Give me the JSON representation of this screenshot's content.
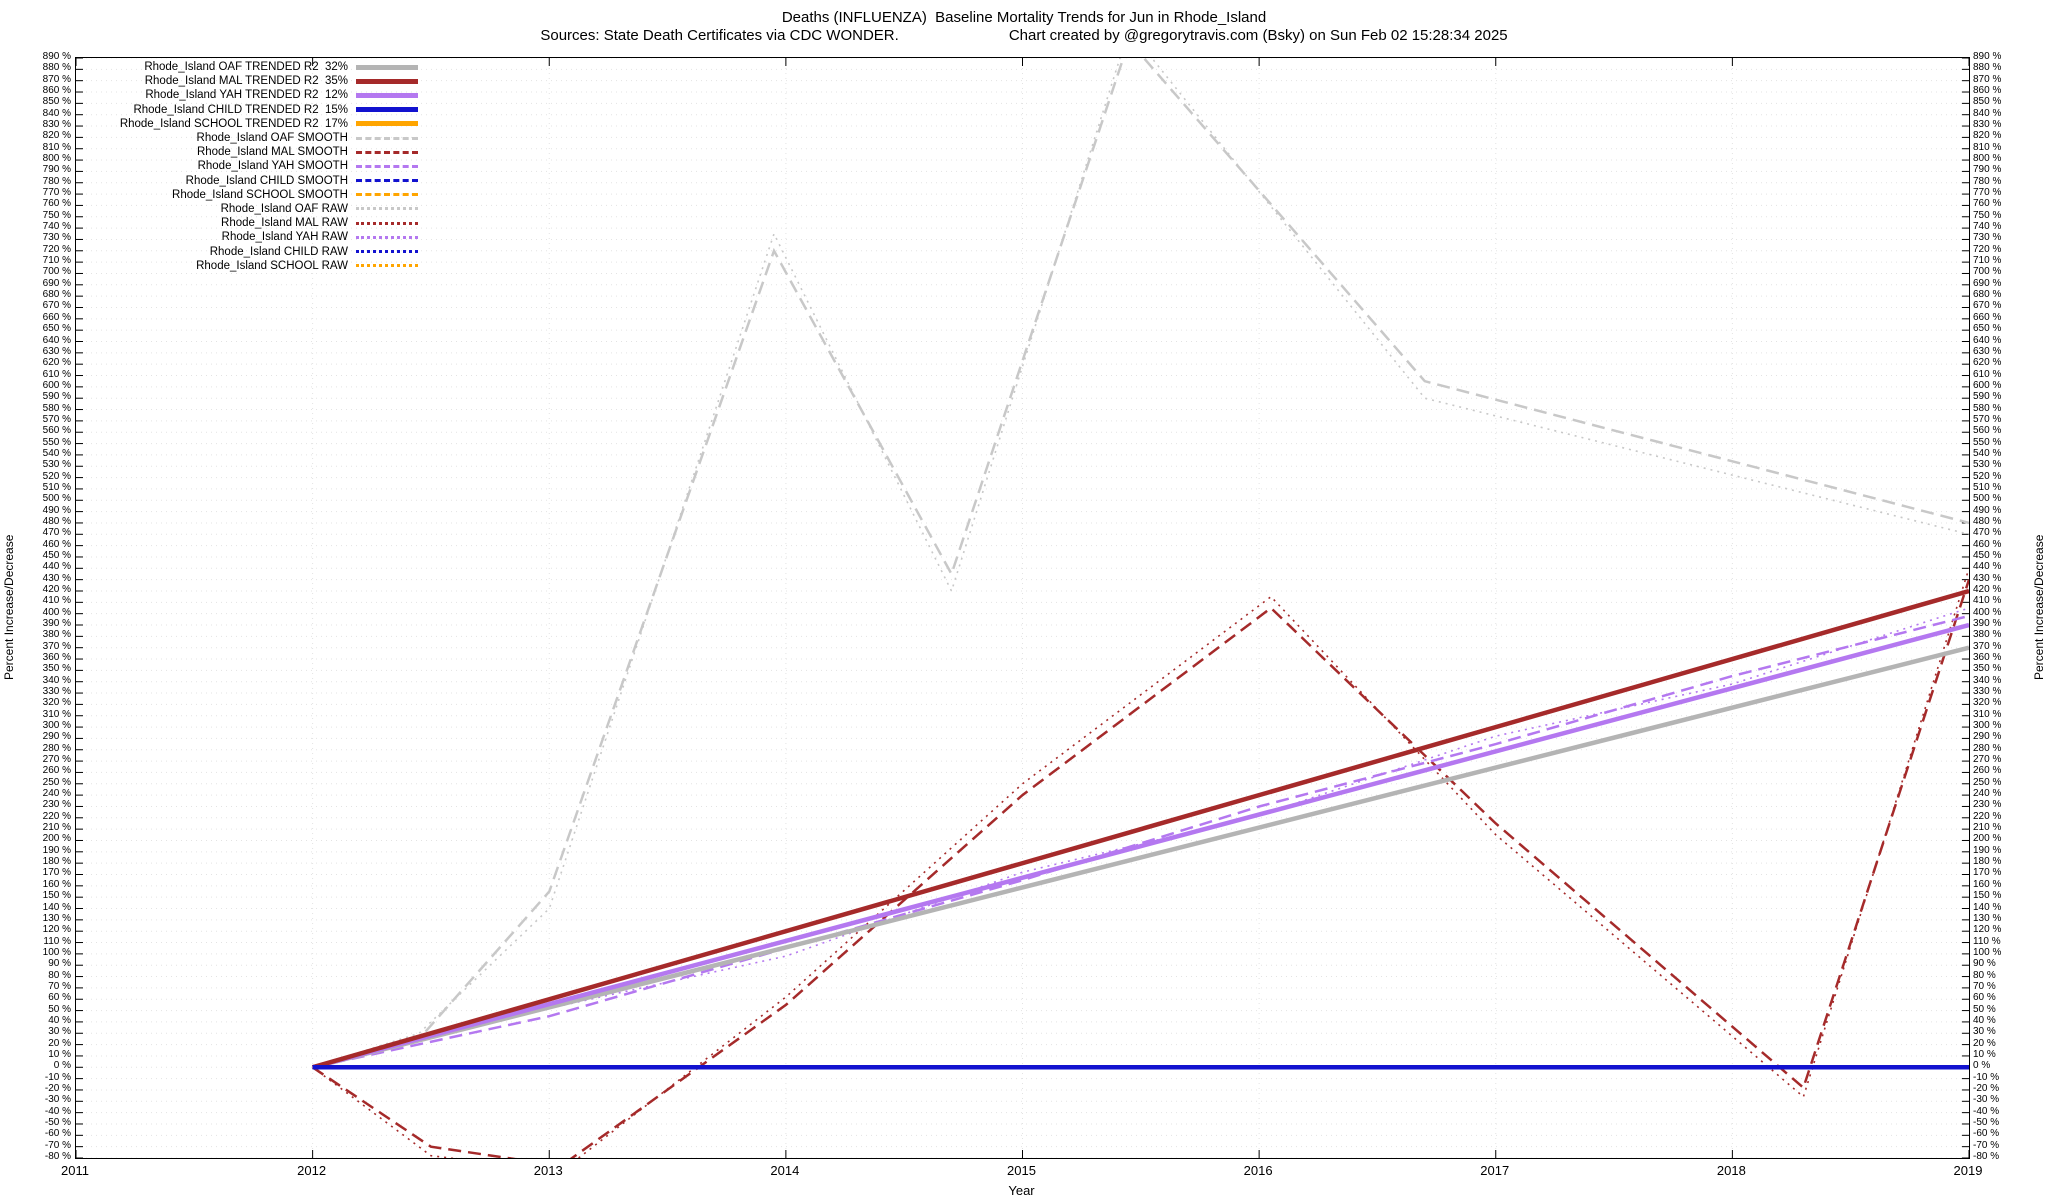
{
  "header": {
    "title": "Deaths (INFLUENZA)  Baseline Mortality Trends for Jun in Rhode_Island",
    "sources": "Sources: State Death Certificates via CDC WONDER.",
    "credit": "Chart created by @gregorytravis.com (Bsky) on Sun Feb 02 15:28:34 2025"
  },
  "chart_data": {
    "type": "line",
    "title": "Deaths (INFLUENZA)  Baseline Mortality Trends for Jun in Rhode_Island",
    "xlabel": "Year",
    "ylabel_left": "Percent Increase/Decrease",
    "ylabel_right": "Percent Increase/Decrease",
    "xlim": [
      2011,
      2019
    ],
    "ylim": [
      -80,
      890
    ],
    "x_ticks": [
      2011,
      2012,
      2013,
      2014,
      2015,
      2016,
      2017,
      2018,
      2019
    ],
    "y_tick_step": 10,
    "y_tick_suffix": " %",
    "grid": true,
    "legend_position": "top-left",
    "series": [
      {
        "name": "oaf-trended",
        "legend": "Rhode_Island OAF TRENDED R2  32%",
        "style": "trend",
        "color": "#b4b4b4",
        "points": [
          [
            2012,
            0
          ],
          [
            2019,
            370
          ]
        ]
      },
      {
        "name": "mal-trended",
        "legend": "Rhode_Island MAL TRENDED R2  35%",
        "style": "trend",
        "color": "#a52a2a",
        "points": [
          [
            2012,
            0
          ],
          [
            2019,
            420
          ]
        ]
      },
      {
        "name": "yah-trended",
        "legend": "Rhode_Island YAH TRENDED R2  12%",
        "style": "trend",
        "color": "#b478f0",
        "points": [
          [
            2012,
            0
          ],
          [
            2019,
            390
          ]
        ]
      },
      {
        "name": "child-trended",
        "legend": "Rhode_Island CHILD TRENDED R2  15%",
        "style": "trend",
        "color": "#1212cf",
        "points": [
          [
            2012,
            0
          ],
          [
            2019,
            0
          ]
        ]
      },
      {
        "name": "school-trended",
        "legend": "Rhode_Island SCHOOL TRENDED R2  17%",
        "style": "trend",
        "color": "#ffa500",
        "points": [
          [
            2012,
            0
          ],
          [
            2019,
            0
          ]
        ]
      },
      {
        "name": "oaf-smooth",
        "legend": "Rhode_Island OAF SMOOTH",
        "style": "smooth",
        "color": "#c8c8c8",
        "points": [
          [
            2012,
            0
          ],
          [
            2012.45,
            25
          ],
          [
            2013,
            155
          ],
          [
            2013.95,
            720
          ],
          [
            2014.7,
            435
          ],
          [
            2015.45,
            905
          ],
          [
            2016.7,
            605
          ],
          [
            2019,
            480
          ]
        ]
      },
      {
        "name": "mal-smooth",
        "legend": "Rhode_Island MAL SMOOTH",
        "style": "smooth",
        "color": "#a52a2a",
        "points": [
          [
            2012,
            0
          ],
          [
            2012.5,
            -70
          ],
          [
            2013.05,
            -87
          ],
          [
            2014,
            55
          ],
          [
            2015,
            240
          ],
          [
            2016.05,
            405
          ],
          [
            2017,
            215
          ],
          [
            2018.3,
            -18
          ],
          [
            2019,
            430
          ]
        ]
      },
      {
        "name": "yah-smooth",
        "legend": "Rhode_Island YAH SMOOTH",
        "style": "smooth",
        "color": "#b478f0",
        "points": [
          [
            2012,
            0
          ],
          [
            2013,
            45
          ],
          [
            2014,
            105
          ],
          [
            2015,
            165
          ],
          [
            2016,
            230
          ],
          [
            2017,
            285
          ],
          [
            2018,
            345
          ],
          [
            2019,
            398
          ]
        ]
      },
      {
        "name": "child-smooth",
        "legend": "Rhode_Island CHILD SMOOTH",
        "style": "smooth",
        "color": "#1212cf",
        "points": [
          [
            2012,
            0
          ],
          [
            2019,
            0
          ]
        ]
      },
      {
        "name": "school-smooth",
        "legend": "Rhode_Island SCHOOL SMOOTH",
        "style": "smooth",
        "color": "#ffa500",
        "points": [
          [
            2012,
            0
          ],
          [
            2019,
            0
          ]
        ]
      },
      {
        "name": "oaf-raw",
        "legend": "Rhode_Island OAF RAW",
        "style": "raw",
        "color": "#c8c8c8",
        "points": [
          [
            2012,
            0
          ],
          [
            2012.45,
            30
          ],
          [
            2013,
            140
          ],
          [
            2013.95,
            735
          ],
          [
            2014.7,
            420
          ],
          [
            2015.45,
            915
          ],
          [
            2016.7,
            590
          ],
          [
            2019,
            470
          ]
        ]
      },
      {
        "name": "mal-raw",
        "legend": "Rhode_Island MAL RAW",
        "style": "raw",
        "color": "#a52a2a",
        "points": [
          [
            2012,
            0
          ],
          [
            2012.5,
            -78
          ],
          [
            2013.05,
            -92
          ],
          [
            2014,
            62
          ],
          [
            2015,
            250
          ],
          [
            2016.05,
            415
          ],
          [
            2017,
            205
          ],
          [
            2018.3,
            -26
          ],
          [
            2019,
            440
          ]
        ]
      },
      {
        "name": "yah-raw",
        "legend": "Rhode_Island YAH RAW",
        "style": "raw",
        "color": "#b478f0",
        "points": [
          [
            2012,
            0
          ],
          [
            2013,
            52
          ],
          [
            2014,
            98
          ],
          [
            2015,
            172
          ],
          [
            2016,
            222
          ],
          [
            2017,
            292
          ],
          [
            2018,
            338
          ],
          [
            2019,
            405
          ]
        ]
      },
      {
        "name": "child-raw",
        "legend": "Rhode_Island CHILD RAW",
        "style": "raw",
        "color": "#1212cf",
        "points": [
          [
            2012,
            0
          ],
          [
            2019,
            0
          ]
        ]
      },
      {
        "name": "school-raw",
        "legend": "Rhode_Island SCHOOL RAW",
        "style": "raw",
        "color": "#ffa500",
        "points": [
          [
            2012,
            0
          ],
          [
            2019,
            0
          ]
        ]
      }
    ],
    "draw_order": [
      10,
      11,
      12,
      13,
      14,
      9,
      5,
      6,
      7,
      8,
      4,
      0,
      2,
      1,
      3
    ]
  }
}
